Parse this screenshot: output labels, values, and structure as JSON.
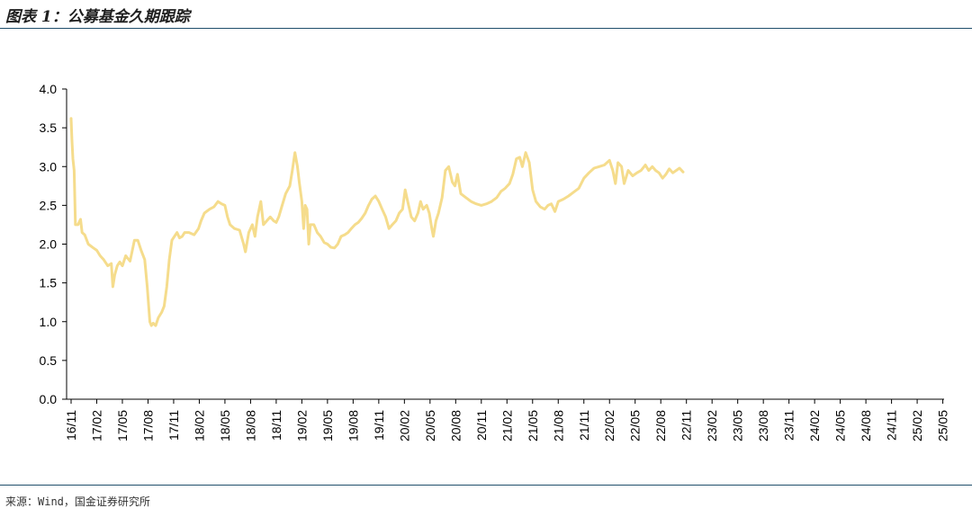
{
  "title": "图表 1：公募基金久期跟踪",
  "source": "来源：Wind，国金证券研究所",
  "chart_data": {
    "type": "line",
    "title": "",
    "xlabel": "",
    "ylabel": "",
    "ylim": [
      0,
      4
    ],
    "yticks": [
      "0.0",
      "0.5",
      "1.0",
      "1.5",
      "2.0",
      "2.5",
      "3.0",
      "3.5",
      "4.0"
    ],
    "xticks": [
      "16/11",
      "17/02",
      "17/05",
      "17/08",
      "17/11",
      "18/02",
      "18/05",
      "18/08",
      "18/11",
      "19/02",
      "19/05",
      "19/08",
      "19/11",
      "20/02",
      "20/05",
      "20/08",
      "20/11",
      "21/02",
      "21/05",
      "21/08",
      "21/11",
      "22/02",
      "22/05",
      "22/08",
      "22/11",
      "23/02",
      "23/05",
      "23/08",
      "23/11",
      "24/02",
      "24/05",
      "24/08",
      "24/11",
      "25/02",
      "25/05"
    ],
    "grid": false,
    "legend": "none",
    "series": [
      {
        "color": "#f5dc8c",
        "points": [
          [
            0.0,
            3.62
          ],
          [
            0.03,
            3.35
          ],
          [
            0.07,
            3.1
          ],
          [
            0.12,
            2.95
          ],
          [
            0.17,
            2.25
          ],
          [
            0.27,
            2.25
          ],
          [
            0.37,
            2.32
          ],
          [
            0.43,
            2.15
          ],
          [
            0.53,
            2.12
          ],
          [
            0.67,
            2.0
          ],
          [
            0.87,
            1.95
          ],
          [
            1.0,
            1.92
          ],
          [
            1.13,
            1.85
          ],
          [
            1.27,
            1.8
          ],
          [
            1.43,
            1.72
          ],
          [
            1.57,
            1.75
          ],
          [
            1.63,
            1.45
          ],
          [
            1.7,
            1.6
          ],
          [
            1.8,
            1.72
          ],
          [
            1.9,
            1.77
          ],
          [
            2.0,
            1.72
          ],
          [
            2.13,
            1.85
          ],
          [
            2.3,
            1.78
          ],
          [
            2.47,
            2.05
          ],
          [
            2.6,
            2.05
          ],
          [
            2.73,
            1.92
          ],
          [
            2.87,
            1.8
          ],
          [
            2.97,
            1.45
          ],
          [
            3.07,
            1.0
          ],
          [
            3.13,
            0.95
          ],
          [
            3.2,
            0.98
          ],
          [
            3.3,
            0.95
          ],
          [
            3.4,
            1.05
          ],
          [
            3.53,
            1.12
          ],
          [
            3.63,
            1.2
          ],
          [
            3.73,
            1.45
          ],
          [
            3.83,
            1.8
          ],
          [
            3.93,
            2.05
          ],
          [
            4.03,
            2.1
          ],
          [
            4.13,
            2.15
          ],
          [
            4.23,
            2.08
          ],
          [
            4.33,
            2.1
          ],
          [
            4.43,
            2.15
          ],
          [
            4.6,
            2.15
          ],
          [
            4.8,
            2.12
          ],
          [
            4.97,
            2.2
          ],
          [
            5.07,
            2.3
          ],
          [
            5.2,
            2.4
          ],
          [
            5.4,
            2.45
          ],
          [
            5.57,
            2.48
          ],
          [
            5.73,
            2.55
          ],
          [
            5.87,
            2.52
          ],
          [
            6.0,
            2.5
          ],
          [
            6.1,
            2.35
          ],
          [
            6.2,
            2.25
          ],
          [
            6.37,
            2.2
          ],
          [
            6.57,
            2.18
          ],
          [
            6.73,
            2.0
          ],
          [
            6.8,
            1.9
          ],
          [
            6.93,
            2.15
          ],
          [
            7.07,
            2.25
          ],
          [
            7.17,
            2.1
          ],
          [
            7.27,
            2.35
          ],
          [
            7.4,
            2.55
          ],
          [
            7.5,
            2.25
          ],
          [
            7.63,
            2.3
          ],
          [
            7.77,
            2.35
          ],
          [
            7.9,
            2.3
          ],
          [
            8.0,
            2.28
          ],
          [
            8.1,
            2.35
          ],
          [
            8.23,
            2.5
          ],
          [
            8.37,
            2.65
          ],
          [
            8.53,
            2.75
          ],
          [
            8.63,
            2.95
          ],
          [
            8.73,
            3.18
          ],
          [
            8.83,
            3.0
          ],
          [
            8.9,
            2.8
          ],
          [
            9.0,
            2.55
          ],
          [
            9.07,
            2.2
          ],
          [
            9.13,
            2.5
          ],
          [
            9.2,
            2.45
          ],
          [
            9.27,
            2.0
          ],
          [
            9.33,
            2.25
          ],
          [
            9.47,
            2.25
          ],
          [
            9.6,
            2.15
          ],
          [
            9.73,
            2.1
          ],
          [
            9.87,
            2.02
          ],
          [
            10.0,
            2.0
          ],
          [
            10.13,
            1.96
          ],
          [
            10.27,
            1.95
          ],
          [
            10.4,
            2.0
          ],
          [
            10.53,
            2.1
          ],
          [
            10.67,
            2.12
          ],
          [
            10.8,
            2.15
          ],
          [
            10.93,
            2.2
          ],
          [
            11.07,
            2.25
          ],
          [
            11.2,
            2.28
          ],
          [
            11.33,
            2.33
          ],
          [
            11.47,
            2.4
          ],
          [
            11.6,
            2.5
          ],
          [
            11.73,
            2.58
          ],
          [
            11.87,
            2.62
          ],
          [
            12.0,
            2.55
          ],
          [
            12.13,
            2.45
          ],
          [
            12.27,
            2.35
          ],
          [
            12.4,
            2.2
          ],
          [
            12.53,
            2.25
          ],
          [
            12.67,
            2.3
          ],
          [
            12.8,
            2.4
          ],
          [
            12.93,
            2.45
          ],
          [
            13.03,
            2.7
          ],
          [
            13.13,
            2.55
          ],
          [
            13.27,
            2.35
          ],
          [
            13.4,
            2.3
          ],
          [
            13.53,
            2.4
          ],
          [
            13.63,
            2.55
          ],
          [
            13.73,
            2.45
          ],
          [
            13.87,
            2.5
          ],
          [
            13.97,
            2.4
          ],
          [
            14.07,
            2.2
          ],
          [
            14.13,
            2.1
          ],
          [
            14.23,
            2.3
          ],
          [
            14.33,
            2.4
          ],
          [
            14.47,
            2.6
          ],
          [
            14.6,
            2.95
          ],
          [
            14.73,
            3.0
          ],
          [
            14.87,
            2.8
          ],
          [
            14.97,
            2.75
          ],
          [
            15.07,
            2.9
          ],
          [
            15.2,
            2.65
          ],
          [
            15.4,
            2.6
          ],
          [
            15.6,
            2.55
          ],
          [
            15.8,
            2.52
          ],
          [
            16.0,
            2.5
          ],
          [
            16.2,
            2.52
          ],
          [
            16.4,
            2.55
          ],
          [
            16.6,
            2.6
          ],
          [
            16.77,
            2.68
          ],
          [
            16.93,
            2.72
          ],
          [
            17.1,
            2.78
          ],
          [
            17.23,
            2.9
          ],
          [
            17.37,
            3.1
          ],
          [
            17.5,
            3.12
          ],
          [
            17.6,
            3.0
          ],
          [
            17.73,
            3.18
          ],
          [
            17.87,
            3.05
          ],
          [
            18.0,
            2.7
          ],
          [
            18.13,
            2.55
          ],
          [
            18.3,
            2.48
          ],
          [
            18.47,
            2.45
          ],
          [
            18.6,
            2.5
          ],
          [
            18.73,
            2.52
          ],
          [
            18.87,
            2.42
          ],
          [
            19.0,
            2.55
          ],
          [
            19.2,
            2.58
          ],
          [
            19.4,
            2.62
          ],
          [
            19.6,
            2.67
          ],
          [
            19.8,
            2.72
          ],
          [
            20.0,
            2.85
          ],
          [
            20.2,
            2.92
          ],
          [
            20.4,
            2.98
          ],
          [
            20.6,
            3.0
          ],
          [
            20.8,
            3.02
          ],
          [
            21.0,
            3.08
          ],
          [
            21.13,
            2.95
          ],
          [
            21.23,
            2.78
          ],
          [
            21.33,
            3.05
          ],
          [
            21.47,
            3.0
          ],
          [
            21.57,
            2.78
          ],
          [
            21.73,
            2.95
          ],
          [
            21.9,
            2.88
          ],
          [
            22.07,
            2.92
          ],
          [
            22.23,
            2.95
          ],
          [
            22.4,
            3.02
          ],
          [
            22.53,
            2.95
          ],
          [
            22.67,
            3.0
          ],
          [
            22.8,
            2.95
          ],
          [
            22.93,
            2.92
          ],
          [
            23.07,
            2.85
          ],
          [
            23.2,
            2.9
          ],
          [
            23.33,
            2.97
          ],
          [
            23.47,
            2.92
          ],
          [
            23.6,
            2.95
          ],
          [
            23.73,
            2.98
          ],
          [
            23.87,
            2.93
          ]
        ]
      }
    ]
  }
}
